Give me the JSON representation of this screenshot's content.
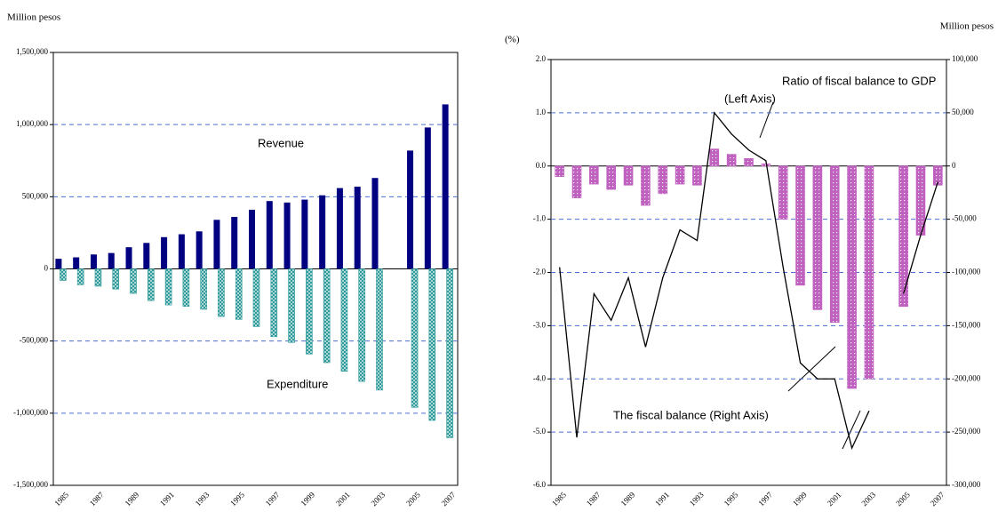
{
  "chart_data": [
    {
      "type": "bar",
      "y_label": "Million pesos",
      "annotations": [
        "Revenue",
        "Expenditure"
      ],
      "categories": [
        "1985",
        null,
        "1987",
        null,
        "1989",
        null,
        "1991",
        null,
        "1993",
        null,
        "1995",
        null,
        "1997",
        null,
        "1999",
        null,
        "2001",
        null,
        "2003",
        null,
        "2005",
        null,
        "2007"
      ],
      "series": [
        {
          "name": "Revenue",
          "color": "#000080",
          "pattern": "solid",
          "values": [
            70000,
            80000,
            100000,
            110000,
            150000,
            180000,
            220000,
            240000,
            260000,
            340000,
            360000,
            410000,
            470000,
            460000,
            480000,
            510000,
            560000,
            570000,
            630000,
            null,
            820000,
            980000,
            1140000
          ]
        },
        {
          "name": "Expenditure",
          "color": "#2e9a9a",
          "pattern": "hatch",
          "values": [
            -80000,
            -110000,
            -120000,
            -140000,
            -170000,
            -220000,
            -250000,
            -260000,
            -280000,
            -330000,
            -350000,
            -400000,
            -470000,
            -510000,
            -590000,
            -650000,
            -710000,
            -780000,
            -840000,
            null,
            -960000,
            -1050000,
            -1170000
          ]
        }
      ],
      "ylim": [
        -1500000,
        1500000
      ],
      "yticks": [
        {
          "value": -1500000,
          "label": "-1,500,000"
        },
        {
          "value": -1000000,
          "label": "-1,000,000"
        },
        {
          "value": -500000,
          "label": "-500,000"
        },
        0,
        {
          "value": 500000,
          "label": "500,000"
        },
        {
          "value": 1000000,
          "label": "1,000,000"
        },
        {
          "value": 1500000,
          "label": "1,500,000"
        }
      ],
      "grid": true
    },
    {
      "type": "bar",
      "y_label": "(%)",
      "y2_label": "Million pesos",
      "annotations": [
        "Ratio of fiscal balance to GDP",
        "(Left Axis)",
        "The fiscal balance (Right Axis)"
      ],
      "categories": [
        "1985",
        null,
        "1987",
        null,
        "1989",
        null,
        "1991",
        null,
        "1993",
        null,
        "1995",
        null,
        "1997",
        null,
        "1999",
        null,
        "2001",
        null,
        "2003",
        null,
        "2005",
        null,
        "2007"
      ],
      "series": [
        {
          "name": "The fiscal balance",
          "color": "#c060c0",
          "pattern": "dots",
          "axis": "y2",
          "values": [
            -10000,
            -30000,
            -17000,
            -22000,
            -18000,
            -37000,
            -26000,
            -17000,
            -18000,
            16000,
            11000,
            7000,
            2000,
            -50000,
            -112000,
            -135000,
            -147000,
            -209000,
            -200000,
            null,
            -132000,
            -65000,
            -18000
          ]
        },
        {
          "name": "Ratio of fiscal balance to GDP",
          "color": "#000000",
          "kind": "line",
          "values": [
            -1.9,
            -5.1,
            -2.4,
            -2.9,
            -2.1,
            -3.4,
            -2.1,
            -1.2,
            -1.4,
            1.0,
            0.6,
            0.3,
            0.1,
            -1.9,
            -3.7,
            -4.0,
            -4.0,
            -5.3,
            -4.6,
            null,
            -2.4,
            -1.3,
            -0.3
          ]
        }
      ],
      "ylim": [
        -6,
        2
      ],
      "yticks": [
        {
          "value": -6,
          "label": "-6.0"
        },
        {
          "value": -5,
          "label": "-5.0"
        },
        {
          "value": -4,
          "label": "-4.0"
        },
        {
          "value": -3,
          "label": "-3.0"
        },
        {
          "value": -2,
          "label": "-2.0"
        },
        {
          "value": -1,
          "label": "-1.0"
        },
        {
          "value": 0,
          "label": "0.0"
        },
        {
          "value": 1,
          "label": "1.0"
        },
        {
          "value": 2,
          "label": "2.0"
        }
      ],
      "y2lim": [
        -300000,
        100000
      ],
      "y2ticks": [
        {
          "value": -300000,
          "label": "-300,000"
        },
        {
          "value": -250000,
          "label": "-250,000"
        },
        {
          "value": -200000,
          "label": "-200,000"
        },
        {
          "value": -150000,
          "label": "-150,000"
        },
        {
          "value": -100000,
          "label": "-100,000"
        },
        {
          "value": -50000,
          "label": "-50,000"
        },
        0,
        {
          "value": 50000,
          "label": "50,000"
        },
        {
          "value": 100000,
          "label": "100,000"
        }
      ],
      "grid": true
    }
  ]
}
